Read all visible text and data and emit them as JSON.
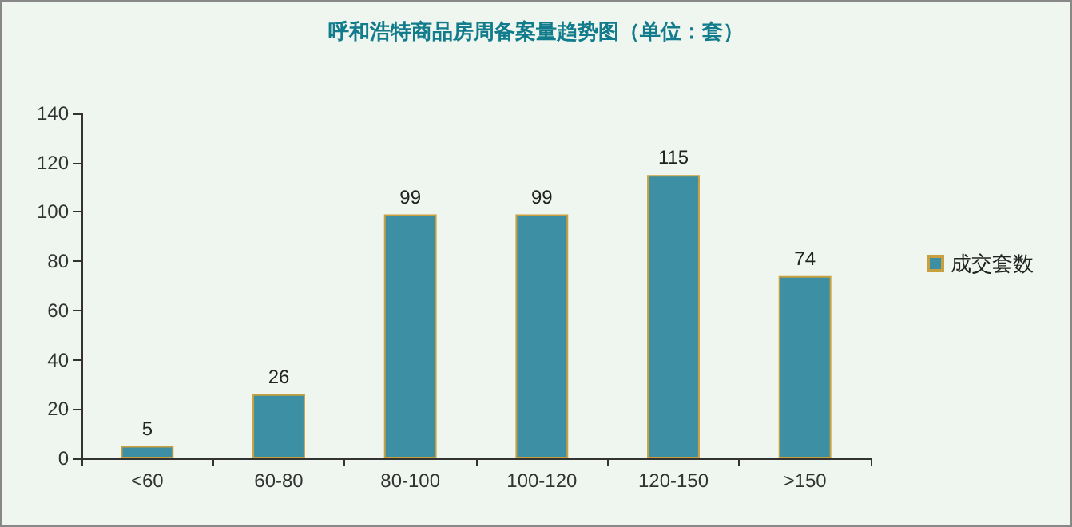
{
  "chart_data": {
    "type": "bar",
    "title": "呼和浩特商品房周备案量趋势图（单位：套）",
    "categories": [
      "<60",
      "60-80",
      "80-100",
      "100-120",
      "120-150",
      ">150"
    ],
    "series": [
      {
        "name": "成交套数",
        "color": "#3d8fa3",
        "values": [
          5,
          26,
          99,
          99,
          115,
          74
        ]
      }
    ],
    "ylim": [
      0,
      140
    ],
    "yticks": [
      0,
      20,
      40,
      60,
      80,
      100,
      120,
      140
    ],
    "data_labels": true,
    "legend": "right",
    "grid": false
  }
}
